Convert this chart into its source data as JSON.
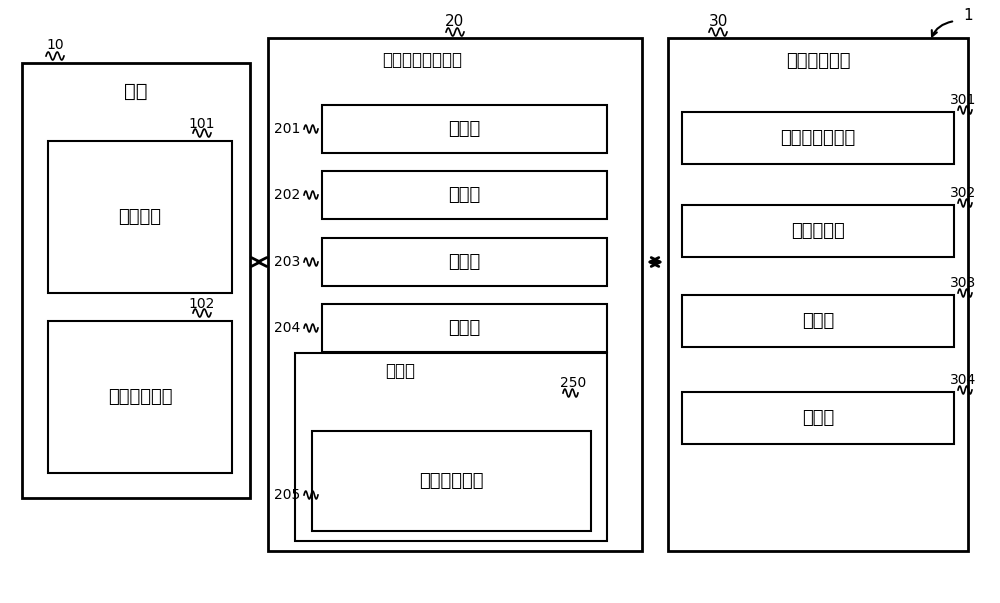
{
  "bg_color": "#ffffff",
  "fig_width": 10.0,
  "fig_height": 6.03,
  "dpi": 100,
  "label_1": "1",
  "label_10": "10",
  "label_20": "20",
  "label_30": "30",
  "label_101": "101",
  "label_102": "102",
  "label_201": "201",
  "label_202": "202",
  "label_203": "203",
  "label_204": "204",
  "label_205": "205",
  "label_250": "250",
  "label_301": "301",
  "label_302": "302",
  "label_303": "303",
  "label_304": "304",
  "text_jichuang": "机床",
  "text_kongzhi": "控制装置",
  "text_fuzhu": "辅助动作机器",
  "text_xiaohao": "消耗电力预测装置",
  "text_shuru": "输入部",
  "text_yuce": "预测部",
  "text_jueding": "决定部",
  "text_tongzhi": "通知部",
  "text_chubu": "存储部",
  "text_xuxi": "学习完成模型",
  "text_jiqi": "机器学习装置",
  "text_shurujuqu": "输入数据取得部",
  "text_biaoqian": "标签取得部",
  "text_xuexibu": "学习部",
  "text_cunchubu": "存储部"
}
